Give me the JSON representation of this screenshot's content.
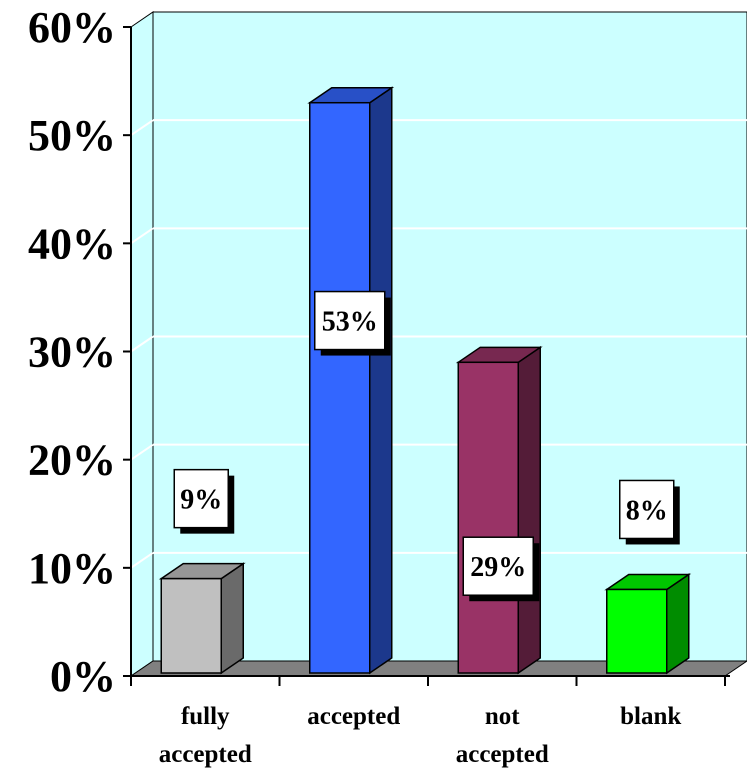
{
  "chart_data": {
    "type": "bar",
    "style": "3d-column",
    "categories": [
      [
        "fully",
        "accepted"
      ],
      [
        "accepted"
      ],
      [
        "not",
        "accepted"
      ],
      [
        "blank"
      ]
    ],
    "values": [
      9,
      53,
      29,
      8
    ],
    "data_labels": [
      "9%",
      "53%",
      "29%",
      "8%"
    ],
    "colors": [
      "#c0c0c0",
      "#3366ff",
      "#993366",
      "#00ff00"
    ],
    "ylim": [
      0,
      60
    ],
    "yticks": [
      {
        "value": 0,
        "label": "0%"
      },
      {
        "value": 10,
        "label": "10%"
      },
      {
        "value": 20,
        "label": "20%"
      },
      {
        "value": 30,
        "label": "30%"
      },
      {
        "value": 40,
        "label": "40%"
      },
      {
        "value": 50,
        "label": "50%"
      },
      {
        "value": 60,
        "label": "60%"
      }
    ],
    "grid": true,
    "plot_background": "#ccffff",
    "floor_color": "#808080",
    "title": "",
    "xlabel": "",
    "ylabel": ""
  }
}
